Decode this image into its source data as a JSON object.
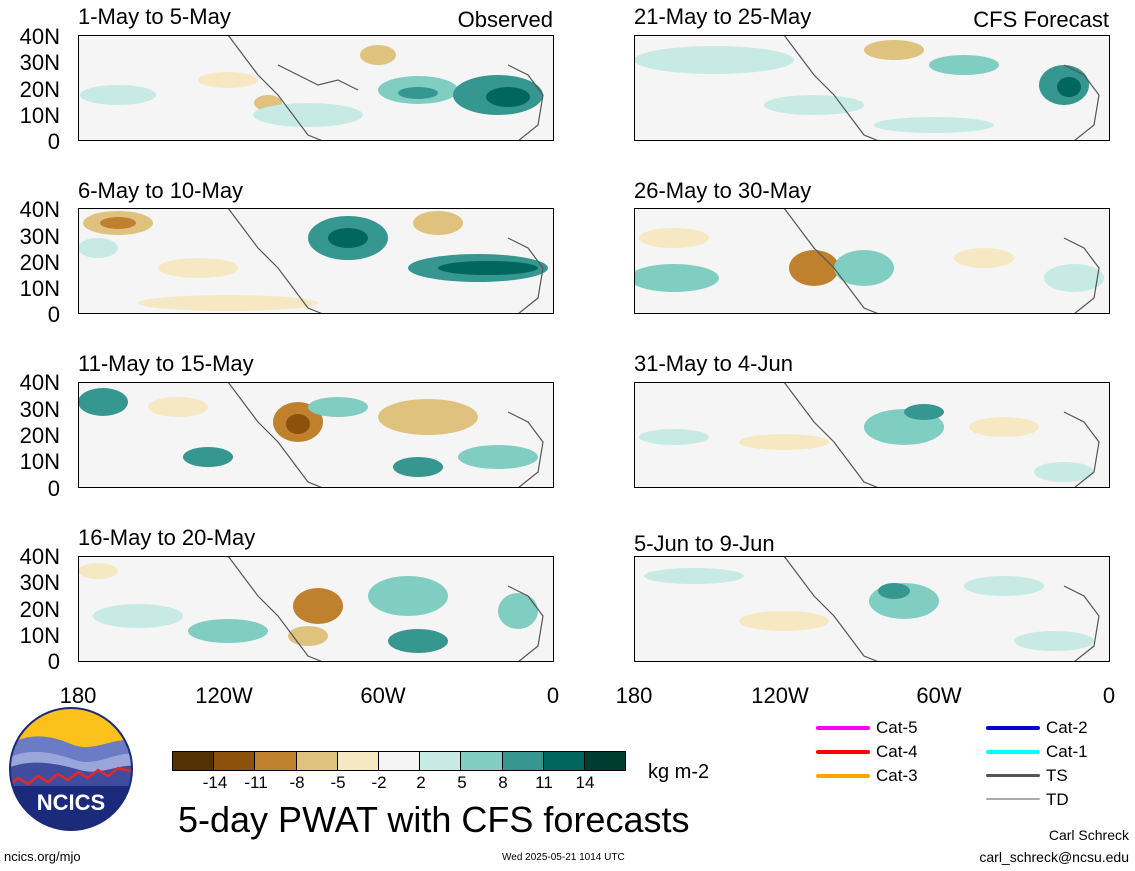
{
  "panels": [
    {
      "title": "1-May to 5-May",
      "tag": "Observed"
    },
    {
      "title": "6-May to 10-May",
      "tag": ""
    },
    {
      "title": "11-May to 15-May",
      "tag": ""
    },
    {
      "title": "16-May to 20-May",
      "tag": ""
    },
    {
      "title": "21-May to 25-May",
      "tag": "CFS Forecast"
    },
    {
      "title": "26-May to 30-May",
      "tag": ""
    },
    {
      "title": "31-May to 4-Jun",
      "tag": ""
    },
    {
      "title": "5-Jun to 9-Jun",
      "tag": ""
    }
  ],
  "axes": {
    "lat_ticks": [
      "40N",
      "30N",
      "20N",
      "10N",
      "0"
    ],
    "lon_ticks": [
      "180",
      "120W",
      "60W",
      "0"
    ]
  },
  "colorbar": {
    "labels": [
      "-14",
      "-11",
      "-8",
      "-5",
      "-2",
      "2",
      "5",
      "8",
      "11",
      "14"
    ],
    "colors": [
      "#543005",
      "#8c510a",
      "#bf812d",
      "#dfc27d",
      "#f6e8c3",
      "#f5f5f5",
      "#c7eae5",
      "#80cdc1",
      "#35978f",
      "#01665e",
      "#003c30"
    ],
    "units": "kg m-2"
  },
  "main_title": "5-day PWAT with CFS forecasts",
  "legend": [
    {
      "label": "Cat-5",
      "color": "#ff00ff"
    },
    {
      "label": "Cat-4",
      "color": "#ff0000"
    },
    {
      "label": "Cat-3",
      "color": "#ffa500"
    },
    {
      "label": "Cat-2",
      "color": "#0000cc"
    },
    {
      "label": "Cat-1",
      "color": "#00ffff"
    },
    {
      "label": "TS",
      "color": "#555555"
    },
    {
      "label": "TD",
      "color": "#aaaaaa"
    }
  ],
  "logo": {
    "text": "NCICS"
  },
  "footer": {
    "left": "ncics.org/mjo",
    "center": "Wed 2025-05-21 1014 UTC",
    "author": "Carl Schreck",
    "email": "carl_schreck@ncsu.edu"
  }
}
